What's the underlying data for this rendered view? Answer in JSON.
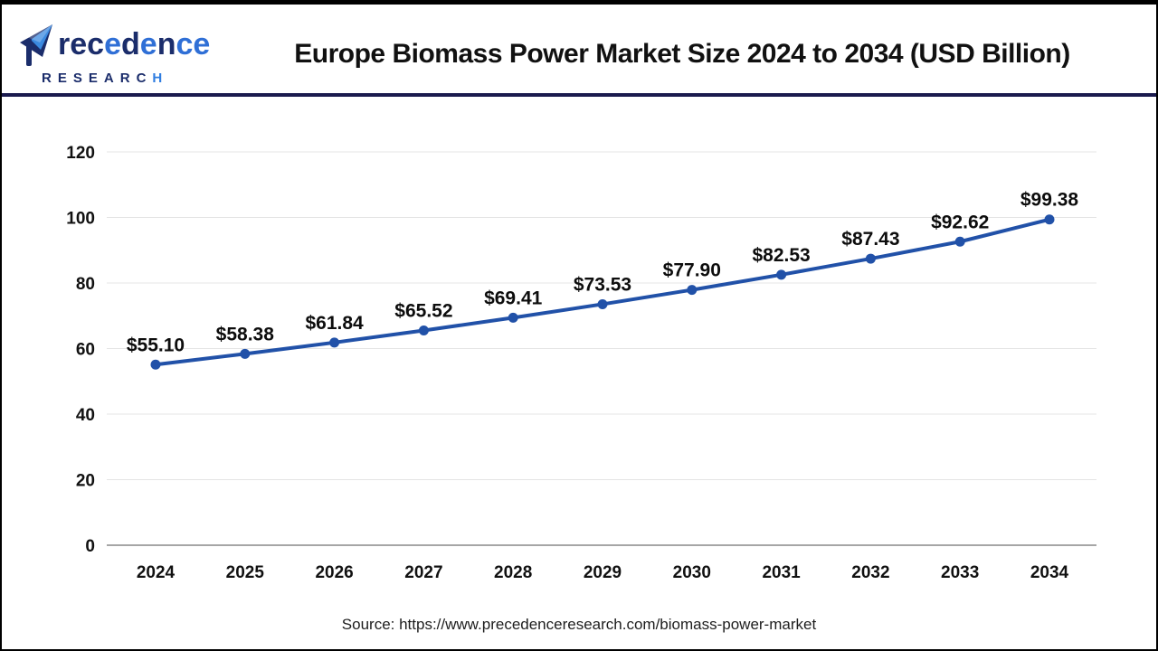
{
  "header": {
    "brand": {
      "name": "Precedence",
      "research": "RESEARCH"
    },
    "title": "Europe Biomass Power Market Size 2024 to 2034 (USD Billion)"
  },
  "footer": {
    "source_text": "Source: https://www.precedenceresearch.com/biomass-power-market"
  },
  "colors": {
    "line_blue": "#2151a8",
    "header_rule_navy": "#1a1a4e",
    "logo_navy": "#1b2d6b",
    "logo_blue": "#2f6fd6",
    "grid_gray": "#e4e4e4",
    "axis_gray": "#a6a6a6"
  },
  "chart_data": {
    "type": "line",
    "title": "Europe Biomass Power Market Size 2024 to 2034 (USD Billion)",
    "categories": [
      "2024",
      "2025",
      "2026",
      "2027",
      "2028",
      "2029",
      "2030",
      "2031",
      "2032",
      "2033",
      "2034"
    ],
    "values": [
      55.1,
      58.38,
      61.84,
      65.52,
      69.41,
      73.53,
      77.9,
      82.53,
      87.43,
      92.62,
      99.38
    ],
    "point_labels": [
      "$55.10",
      "$58.38",
      "$61.84",
      "$65.52",
      "$69.41",
      "$73.53",
      "$77.90",
      "$82.53",
      "$87.43",
      "$92.62",
      "$99.38"
    ],
    "xlabel": "",
    "ylabel": "",
    "ylim": [
      0,
      120
    ],
    "yticks": [
      0,
      20,
      40,
      60,
      80,
      100,
      120
    ],
    "grid": true,
    "legend": "none",
    "line_color": "#2151a8",
    "point_color": "#2151a8"
  }
}
